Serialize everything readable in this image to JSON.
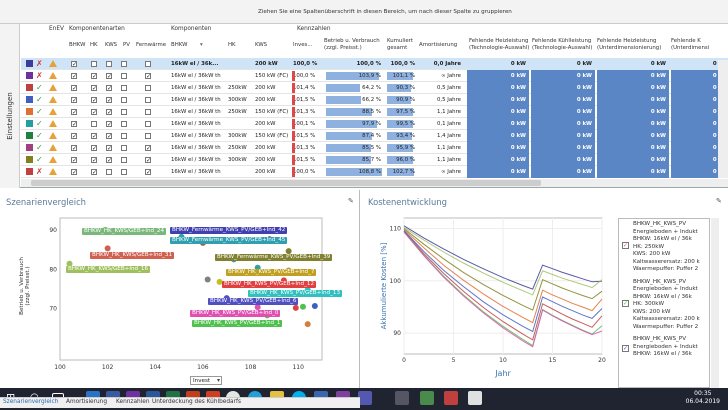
{
  "group_hint": "Ziehen Sie eine Spaltenüberschrift in diesen Bereich, um nach dieser Spalte zu gruppieren",
  "side_tab": "Einstellungen",
  "groups": {
    "enev": "EnEV",
    "komponentenarten": "Komponentenarten",
    "komponenten": "Komponenten",
    "kennzahlen": "Kennzahlen"
  },
  "columns": {
    "bhkw_a": "BHKW",
    "hk_a": "HK",
    "kws_a": "KWS",
    "pv_a": "PV",
    "fernwaerme": "Fernwärme",
    "bhkw": "BHKW",
    "hk": "HK",
    "kws": "KWS",
    "invest": "Inves...",
    "betrieb1": "Betrieb u. Verbrauch",
    "betrieb2": "(zzgl. Preisst.)",
    "kumuliert1": "Kumuliert",
    "kumuliert2": "gesamt",
    "amortisierung": "Amortisierung",
    "fh1_1": "Fehlende Heizleistung",
    "fh1_2": "(Technologie-Auswahl)",
    "fk1_1": "Fehlende Kühlleistung",
    "fk1_2": "(Technologie-Auswahl)",
    "fh2_1": "Fehlende Heizleistung",
    "fh2_2": "(Unterdimensionierung)",
    "fk2_1": "Fehlende K",
    "fk2_2": "(Unterdimensi"
  },
  "rows": [
    {
      "color": "#3c3c9a",
      "ok": false,
      "cb": [
        true,
        false,
        false,
        false,
        false
      ],
      "bhkw": "16kW el / 36k...",
      "hk": "",
      "kws": "200 kW",
      "invest": "100,0 %",
      "betrieb": "100,0 %",
      "kum": "100,0 %",
      "amort": "0,0 Jahre",
      "kb": 0,
      "kk": 0,
      "v1": "0 kW",
      "v2": "0 kW",
      "v3": "0 kW",
      "v4": "0 kW",
      "selected": true
    },
    {
      "color": "#7030a0",
      "ok": false,
      "cb": [
        true,
        true,
        true,
        false,
        true
      ],
      "bhkw": "16kW el / 36kW th",
      "hk": "",
      "kws": "150 kW (FC)",
      "invest": "100,0 %",
      "betrieb": "103,9 %",
      "kum": "101,1 %",
      "amort": "∞ Jahre",
      "kb": 0.92,
      "kk": 0.88,
      "v1": "0 kW",
      "v2": "0 kW",
      "v3": "0 kW",
      "v4": "0 kW"
    },
    {
      "color": "#c04040",
      "ok": true,
      "cb": [
        true,
        true,
        true,
        false,
        false
      ],
      "bhkw": "16kW el / 36kW th",
      "hk": "250kW",
      "kws": "200 kW",
      "invest": "101,4 %",
      "betrieb": "64,2 %",
      "kum": "90,3 %",
      "amort": "0,5 Jahre",
      "kb": 0.58,
      "kk": 0.8,
      "v1": "0 kW",
      "v2": "0 kW",
      "v3": "0 kW",
      "v4": "0 kW"
    },
    {
      "color": "#4060c0",
      "ok": true,
      "cb": [
        true,
        true,
        true,
        false,
        false
      ],
      "bhkw": "16kW el / 36kW th",
      "hk": "300kW",
      "kws": "200 kW",
      "invest": "101,5 %",
      "betrieb": "66,2 %",
      "kum": "90,9 %",
      "amort": "0,5 Jahre",
      "kb": 0.6,
      "kk": 0.8,
      "v1": "0 kW",
      "v2": "0 kW",
      "v3": "0 kW",
      "v4": "0 kW"
    },
    {
      "color": "#e07030",
      "ok": true,
      "cb": [
        true,
        true,
        true,
        false,
        false
      ],
      "bhkw": "16kW el / 36kW th",
      "hk": "250kW",
      "kws": "150 kW (FC)",
      "invest": "101,3 %",
      "betrieb": "88,5 %",
      "kum": "97,5 %",
      "amort": "1,1 Jahre",
      "kb": 0.8,
      "kk": 0.86,
      "v1": "0 kW",
      "v2": "0 kW",
      "v3": "0 kW",
      "v4": "0 kW"
    },
    {
      "color": "#20a0a0",
      "ok": true,
      "cb": [
        true,
        false,
        true,
        false,
        false
      ],
      "bhkw": "16kW el / 36kW th",
      "hk": "",
      "kws": "200 kW",
      "invest": "100,1 %",
      "betrieb": "97,9 %",
      "kum": "99,5 %",
      "amort": "0,1 Jahre",
      "kb": 0.88,
      "kk": 0.88,
      "v1": "0 kW",
      "v2": "0 kW",
      "v3": "0 kW",
      "v4": "0 kW"
    },
    {
      "color": "#208040",
      "ok": true,
      "cb": [
        true,
        true,
        true,
        false,
        false
      ],
      "bhkw": "16kW el / 36kW th",
      "hk": "300kW",
      "kws": "150 kW (FC)",
      "invest": "101,5 %",
      "betrieb": "87,4 %",
      "kum": "93,4 %",
      "amort": "1,4 Jahre",
      "kb": 0.79,
      "kk": 0.83,
      "v1": "0 kW",
      "v2": "0 kW",
      "v3": "0 kW",
      "v4": "0 kW"
    },
    {
      "color": "#a04080",
      "ok": true,
      "cb": [
        true,
        true,
        true,
        false,
        true
      ],
      "bhkw": "16kW el / 36kW th",
      "hk": "250kW",
      "kws": "200 kW",
      "invest": "101,3 %",
      "betrieb": "85,5 %",
      "kum": "95,9 %",
      "amort": "1,1 Jahre",
      "kb": 0.77,
      "kk": 0.85,
      "v1": "0 kW",
      "v2": "0 kW",
      "v3": "0 kW",
      "v4": "0 kW"
    },
    {
      "color": "#808020",
      "ok": true,
      "cb": [
        true,
        true,
        true,
        false,
        true
      ],
      "bhkw": "16kW el / 36kW th",
      "hk": "300kW",
      "kws": "200 kW",
      "invest": "101,5 %",
      "betrieb": "85,7 %",
      "kum": "96,0 %",
      "amort": "1,1 Jahre",
      "kb": 0.77,
      "kk": 0.85,
      "v1": "0 kW",
      "v2": "0 kW",
      "v3": "0 kW",
      "v4": "0 kW"
    },
    {
      "color": "#c04040",
      "ok": false,
      "cb": [
        true,
        true,
        false,
        false,
        true
      ],
      "bhkw": "16kW el / 36kW th",
      "hk": "",
      "kws": "200 kW",
      "invest": "100,0 %",
      "betrieb": "108,8 %",
      "kum": "102,7 %",
      "amort": "∞ Jahre",
      "kb": 0.96,
      "kk": 0.9,
      "v1": "0 kW",
      "v2": "0 kW",
      "v3": "0 kW",
      "v4": "0 kW"
    },
    {
      "color": "#7030c0",
      "ok": true,
      "cb": [
        true,
        true,
        true,
        false,
        false
      ],
      "bhkw": "16kW el / 36kW th",
      "hk": "250kW",
      "kws": "150 kW (FC)",
      "invest": "101,3 %",
      "betrieb": "89,0 %",
      "kum": "96,5 %",
      "amort": "1,2 Jahre",
      "kb": 0.8,
      "kk": 0.86,
      "v1": "0 kW",
      "v2": "0 kW",
      "v3": "0 kW",
      "v4": "0 kW"
    }
  ],
  "scenario": {
    "title": "Szenarienvergleich",
    "ylabel1": "Betrieb u. Verbrauch",
    "ylabel2": "(zzgl. Preisst.)",
    "xselector": "Invest",
    "labels": [
      {
        "text": "BHKW_HK_KWS/GEB+Ind_24",
        "color": "#7ab87a"
      },
      {
        "text": "BHKW_Fernwärme_KWS_PV/GEB+Ind_42",
        "color": "#4040b0"
      },
      {
        "text": "BHKW_Fernwärme_KWS_PV/GEB+Ind_45",
        "color": "#30a0b0"
      },
      {
        "text": "BHKW_HK_KWS/GEB+Ind_31",
        "color": "#d06050"
      },
      {
        "text": "BHKW_Fernwärme_KWS_PV/GEB+Ind_39",
        "color": "#808030"
      },
      {
        "text": "BHKW_HK_KWS/GEB+Ind_16",
        "color": "#a0c060"
      },
      {
        "text": "BHKW_HK_KWS_PV/GEB+Ind_7",
        "color": "#c0a020"
      },
      {
        "text": "BHKW_HK_KWS_PV/GEB+Ind_12",
        "color": "#e04040"
      },
      {
        "text": "BHKW_HK_KWS_PV/GEB+Ind_13",
        "color": "#30c0c0"
      },
      {
        "text": "BHKW_HK_KWS_PV/GEB+Ind_6",
        "color": "#5050c0"
      },
      {
        "text": "BHKW_HK_KWS_PV/GEB+Ind_0",
        "color": "#e050b0"
      },
      {
        "text": "BHKW_HK_KWS_PV/GEB+Ind_1",
        "color": "#50c050"
      }
    ]
  },
  "cost": {
    "title": "Kostenentwicklung",
    "ylabel": "Akkumulierte Kosten [%]",
    "xlabel": "Jahr",
    "legend": [
      {
        "checked": true,
        "color": "#e050b0",
        "lines": [
          "BHKW_HK_KWS_PV",
          "Energieboden + Indukt",
          "BHKW: 16kW el / 36k",
          "HK: 250kW",
          "KWS: 200 kW",
          "Kaltwasserersatz: 200 k",
          "Waermepuffer: Puffer 2"
        ]
      },
      {
        "checked": true,
        "color": "#50c050",
        "lines": [
          "BHKW_HK_KWS_PV",
          "Energieboden + Indukt",
          "BHKW: 16kW el / 36k",
          "HK: 300kW",
          "KWS: 200 kW",
          "Kaltwasserersatz: 200 k",
          "Waermepuffer: Puffer 2"
        ]
      },
      {
        "checked": true,
        "color": "#4060c0",
        "lines": [
          "BHKW_HK_KWS_PV",
          "Energieboden + Indukt",
          "BHKW: 16kW el / 36k"
        ]
      }
    ]
  },
  "chart_data": [
    {
      "type": "scatter",
      "title": "Szenarienvergleich",
      "xlabel": "Invest",
      "ylabel": "Betrieb u. Verbrauch (zzgl. Preisst.)",
      "xlim": [
        100,
        111
      ],
      "ylim": [
        57,
        93
      ],
      "xticks": [
        100,
        102,
        104,
        106,
        108,
        110
      ],
      "yticks": [
        70,
        80,
        90
      ],
      "points": [
        {
          "x": 101.9,
          "y": 90.0,
          "color": "#7ab87a"
        },
        {
          "x": 108.6,
          "y": 90.0,
          "color": "#4040b0"
        },
        {
          "x": 105.1,
          "y": 88.2,
          "color": "#30a0b0"
        },
        {
          "x": 102.0,
          "y": 85.3,
          "color": "#d06050"
        },
        {
          "x": 109.6,
          "y": 84.6,
          "color": "#808030"
        },
        {
          "x": 100.4,
          "y": 81.4,
          "color": "#a0c060"
        },
        {
          "x": 109.6,
          "y": 79.7,
          "color": "#c0a020"
        },
        {
          "x": 109.4,
          "y": 77.2,
          "color": "#e04040"
        },
        {
          "x": 110.4,
          "y": 74.8,
          "color": "#30c0c0"
        },
        {
          "x": 107.0,
          "y": 72.7,
          "color": "#5050c0"
        },
        {
          "x": 108.3,
          "y": 70.4,
          "color": "#e050b0"
        },
        {
          "x": 108.7,
          "y": 68.3,
          "color": "#50c050"
        },
        {
          "x": 109.9,
          "y": 70.2,
          "color": "#e04040"
        },
        {
          "x": 110.2,
          "y": 70.5,
          "color": "#50c050"
        },
        {
          "x": 110.7,
          "y": 70.7,
          "color": "#4060c0"
        },
        {
          "x": 106.2,
          "y": 77.4,
          "color": "#808080"
        },
        {
          "x": 106.7,
          "y": 76.8,
          "color": "#c0c020"
        },
        {
          "x": 107.3,
          "y": 82.5,
          "color": "#30a0b0"
        },
        {
          "x": 106.0,
          "y": 86.7,
          "color": "#a06040"
        },
        {
          "x": 108.8,
          "y": 87.6,
          "color": "#7030a0"
        },
        {
          "x": 108.3,
          "y": 80.4,
          "color": "#30a0a0"
        },
        {
          "x": 110.4,
          "y": 66.1,
          "color": "#d08040"
        }
      ]
    },
    {
      "type": "line",
      "title": "Kostenentwicklung",
      "xlabel": "Jahr",
      "ylabel": "Akkumulierte Kosten [%]",
      "xlim": [
        0,
        20
      ],
      "ylim": [
        86,
        112
      ],
      "xticks": [
        0,
        5,
        10,
        15,
        20
      ],
      "yticks": [
        90,
        100,
        110
      ],
      "x": [
        0,
        2,
        4,
        6,
        8,
        10,
        12,
        13,
        14,
        15,
        16,
        17,
        18,
        19,
        20
      ],
      "series": [
        {
          "color": "#3c3c9a",
          "values": [
            110.5,
            108.2,
            106.1,
            104.1,
            102.3,
            100.6,
            99.1,
            98.4,
            103.0,
            102.3,
            101.6,
            101.0,
            100.4,
            99.8,
            99.9
          ]
        },
        {
          "color": "#808020",
          "values": [
            110.0,
            107.0,
            104.2,
            101.6,
            99.3,
            97.2,
            95.3,
            94.4,
            100.2,
            99.4,
            98.6,
            97.9,
            97.2,
            96.6,
            98.0
          ]
        },
        {
          "color": "#e07030",
          "values": [
            109.8,
            106.3,
            103.0,
            100.1,
            97.5,
            95.1,
            93.0,
            92.0,
            98.2,
            97.3,
            96.5,
            95.7,
            95.0,
            94.3,
            96.5
          ]
        },
        {
          "color": "#c04040",
          "values": [
            109.5,
            105.2,
            101.4,
            98.0,
            94.9,
            92.2,
            89.8,
            88.7,
            95.6,
            94.6,
            93.6,
            92.7,
            91.9,
            91.1,
            93.3
          ]
        },
        {
          "color": "#50c050",
          "values": [
            109.4,
            104.9,
            100.9,
            97.3,
            94.1,
            91.3,
            88.8,
            87.6,
            94.5,
            93.4,
            92.4,
            91.5,
            90.6,
            89.8,
            91.4
          ]
        },
        {
          "color": "#e050b0",
          "values": [
            109.3,
            104.8,
            100.7,
            97.1,
            93.9,
            91.0,
            88.5,
            87.4,
            94.4,
            93.3,
            92.3,
            91.4,
            90.5,
            89.7,
            90.4
          ]
        },
        {
          "color": "#4060c0",
          "values": [
            109.6,
            105.6,
            102.0,
            98.9,
            96.0,
            93.5,
            91.3,
            90.3,
            96.9,
            96.0,
            95.1,
            94.3,
            93.5,
            92.8,
            94.7
          ]
        },
        {
          "color": "#a0c060",
          "values": [
            110.2,
            107.8,
            105.5,
            103.4,
            101.5,
            99.7,
            98.1,
            97.3,
            101.9,
            101.2,
            100.5,
            99.9,
            99.3,
            98.7,
            100.2
          ]
        }
      ]
    }
  ],
  "tabs": [
    "Szenarienvergleich",
    "Amortisierung",
    "Kennzahlen",
    "Unterdeckung des Kühlbedarfs"
  ],
  "taskbar": {
    "time": "00:35",
    "date": "06.04.2019"
  }
}
